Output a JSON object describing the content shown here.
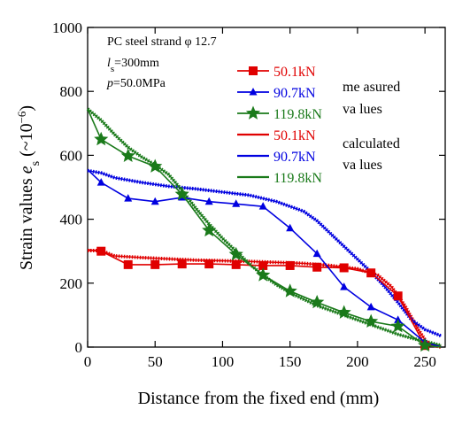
{
  "chart_data": {
    "type": "line",
    "xlabel": "Distance from the fixed end (mm)",
    "ylabel_main": "Strain values ",
    "ylabel_symbol": "e",
    "ylabel_sub": "s",
    "ylabel_paren_open": " (~10",
    "ylabel_exp": "−6",
    "ylabel_paren_close": ")",
    "xlim": [
      0,
      265
    ],
    "ylim": [
      0,
      1000
    ],
    "x_ticks": [
      0,
      50,
      100,
      150,
      200,
      250
    ],
    "y_ticks": [
      0,
      200,
      400,
      600,
      800,
      1000
    ],
    "grid": false,
    "annotations": {
      "line1": "PC steel strand  φ 12.7",
      "line2_var": "l",
      "line2_sub": "s",
      "line2_rest": "=300mm",
      "line3_var": "p",
      "line3_rest": "=50.0MPa"
    },
    "legend": {
      "placement": "top-right",
      "measured_note": [
        "me asured",
        "va lues"
      ],
      "calculated_note": [
        "calculated",
        "va lues"
      ]
    },
    "measured": [
      {
        "name": "50.1kN",
        "color": "#e00000",
        "marker": "square",
        "x": [
          0,
          10,
          30,
          50,
          70,
          90,
          110,
          130,
          150,
          170,
          190,
          210,
          230,
          250,
          262
        ],
        "y": [
          305,
          300,
          258,
          258,
          260,
          260,
          258,
          255,
          255,
          250,
          248,
          232,
          160,
          5,
          0
        ]
      },
      {
        "name": "90.7kN",
        "color": "#0000e0",
        "marker": "triangle",
        "x": [
          0,
          10,
          30,
          50,
          70,
          90,
          110,
          130,
          150,
          170,
          190,
          210,
          230,
          250,
          262
        ],
        "y": [
          555,
          515,
          465,
          455,
          468,
          455,
          448,
          440,
          372,
          292,
          188,
          125,
          85,
          15,
          0
        ]
      },
      {
        "name": "119.8kN",
        "color": "#1a7a1a",
        "marker": "star",
        "x": [
          0,
          10,
          30,
          50,
          70,
          90,
          110,
          130,
          150,
          170,
          190,
          210,
          230,
          250,
          262
        ],
        "y": [
          745,
          650,
          598,
          565,
          478,
          365,
          290,
          225,
          175,
          140,
          108,
          80,
          65,
          5,
          0
        ]
      }
    ],
    "calculated": [
      {
        "name": "50.1kN",
        "color": "#e00000",
        "x": [
          0,
          10,
          20,
          40,
          60,
          80,
          100,
          120,
          140,
          160,
          180,
          200,
          215,
          225,
          235,
          245,
          252,
          262
        ],
        "y": [
          302,
          302,
          285,
          280,
          276,
          272,
          270,
          268,
          265,
          262,
          255,
          245,
          225,
          190,
          130,
          55,
          10,
          0
        ]
      },
      {
        "name": "90.7kN",
        "color": "#0000e0",
        "x": [
          0,
          10,
          20,
          40,
          60,
          80,
          100,
          120,
          140,
          160,
          170,
          180,
          190,
          200,
          210,
          220,
          230,
          240,
          250,
          262
        ],
        "y": [
          552,
          545,
          530,
          515,
          503,
          495,
          485,
          475,
          455,
          425,
          395,
          355,
          315,
          275,
          235,
          190,
          140,
          85,
          55,
          35
        ]
      },
      {
        "name": "119.8kN",
        "color": "#1a7a1a",
        "x": [
          0,
          10,
          20,
          30,
          40,
          50,
          60,
          70,
          80,
          90,
          100,
          110,
          120,
          130,
          140,
          150,
          160,
          170,
          180,
          190,
          200,
          210,
          220,
          230,
          240,
          250,
          262
        ],
        "y": [
          745,
          710,
          665,
          625,
          595,
          570,
          540,
          490,
          435,
          385,
          340,
          300,
          260,
          225,
          195,
          170,
          150,
          130,
          115,
          100,
          85,
          70,
          55,
          40,
          28,
          18,
          5
        ]
      }
    ]
  }
}
